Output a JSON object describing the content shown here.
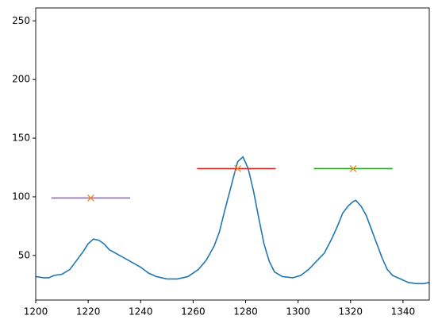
{
  "chart_data": {
    "type": "line",
    "xlim": [
      1200,
      1350
    ],
    "ylim": [
      12,
      261
    ],
    "xticks": [
      1200,
      1220,
      1240,
      1260,
      1280,
      1300,
      1320,
      1340
    ],
    "yticks": [
      50,
      100,
      150,
      200,
      250
    ],
    "grid": false,
    "series": [
      {
        "color": "#1f77b4",
        "x": [
          1200,
          1203,
          1205,
          1207,
          1210,
          1213,
          1215,
          1218,
          1220,
          1222,
          1224,
          1226,
          1228,
          1232,
          1236,
          1240,
          1243,
          1246,
          1250,
          1254,
          1258,
          1262,
          1265,
          1268,
          1270,
          1272,
          1274,
          1276,
          1277,
          1279,
          1281,
          1283,
          1285,
          1287,
          1289,
          1291,
          1294,
          1298,
          1301,
          1304,
          1307,
          1310,
          1313,
          1315,
          1317,
          1319,
          1321,
          1322,
          1324,
          1326,
          1328,
          1330,
          1332,
          1334,
          1336,
          1339,
          1342,
          1345,
          1348,
          1350
        ],
        "values": [
          32,
          31,
          31,
          33,
          34,
          38,
          44,
          53,
          60,
          64,
          63,
          60,
          55,
          50,
          45,
          40,
          35,
          32,
          30,
          30,
          32,
          38,
          46,
          58,
          70,
          88,
          105,
          122,
          130,
          134,
          124,
          105,
          82,
          60,
          45,
          36,
          32,
          31,
          33,
          38,
          45,
          52,
          65,
          75,
          86,
          92,
          96,
          97,
          92,
          84,
          72,
          60,
          48,
          38,
          33,
          30,
          27,
          26,
          26,
          27
        ]
      },
      {
        "color": "#9467bd",
        "x": [
          1206,
          1236
        ],
        "values": [
          99,
          99
        ]
      },
      {
        "color": "#d62728",
        "x": [
          1261.5,
          1291.5
        ],
        "values": [
          124,
          124
        ]
      },
      {
        "color": "#2ca02c",
        "x": [
          1306,
          1336
        ],
        "values": [
          124,
          124
        ]
      },
      {
        "color": "#ff7f0e",
        "marker": "x",
        "x": [
          1221,
          1277,
          1321
        ],
        "values": [
          99,
          124,
          124
        ]
      }
    ]
  }
}
